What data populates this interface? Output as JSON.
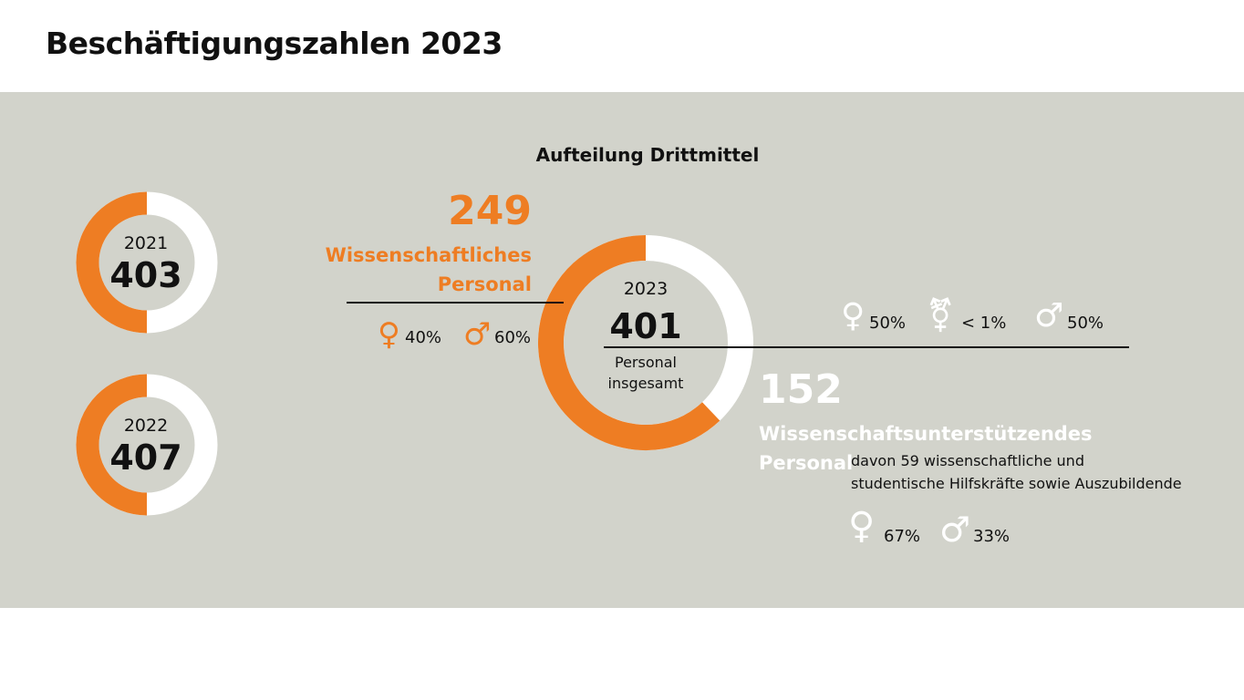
{
  "title": "Beschäftigungszahlen 2023",
  "subtitle": "Aufteilung Drittmittel",
  "colors": {
    "orange": "#ee7d23",
    "white": "#ffffff",
    "panel": "#d2d3cb"
  },
  "donuts": {
    "y2021": {
      "year": "2021",
      "total": "403"
    },
    "y2022": {
      "year": "2022",
      "total": "407"
    },
    "y2023": {
      "year": "2023",
      "total": "401",
      "label_line1": "Personal",
      "label_line2": "insgesamt"
    }
  },
  "scientific": {
    "count": "249",
    "label_line1": "Wissenschaftliches",
    "label_line2": "Personal",
    "female_pct": "40%",
    "male_pct": "60%"
  },
  "support": {
    "count": "152",
    "label_line1": "Wissenschaftsunterstützendes",
    "label_line2": "Personal",
    "note_line1": "davon 59 wissenschaftliche und",
    "note_line2": "studentische Hilfskräfte sowie Auszubildende",
    "female_pct": "67%",
    "male_pct": "33%"
  },
  "overall": {
    "female_pct": "50%",
    "diverse_pct": "< 1%",
    "male_pct": "50%"
  },
  "chart_data": [
    {
      "type": "pie",
      "title": "2021",
      "total": 403,
      "series": [
        {
          "values": [
            50,
            50
          ]
        }
      ]
    },
    {
      "type": "pie",
      "title": "2022",
      "total": 407,
      "series": [
        {
          "values": [
            50,
            50
          ]
        }
      ]
    },
    {
      "type": "pie",
      "title": "2023",
      "total": 401,
      "categories": [
        "Wissenschaftliches Personal",
        "Wissenschaftsunterstützendes Personal"
      ],
      "values": [
        249,
        152
      ]
    }
  ]
}
